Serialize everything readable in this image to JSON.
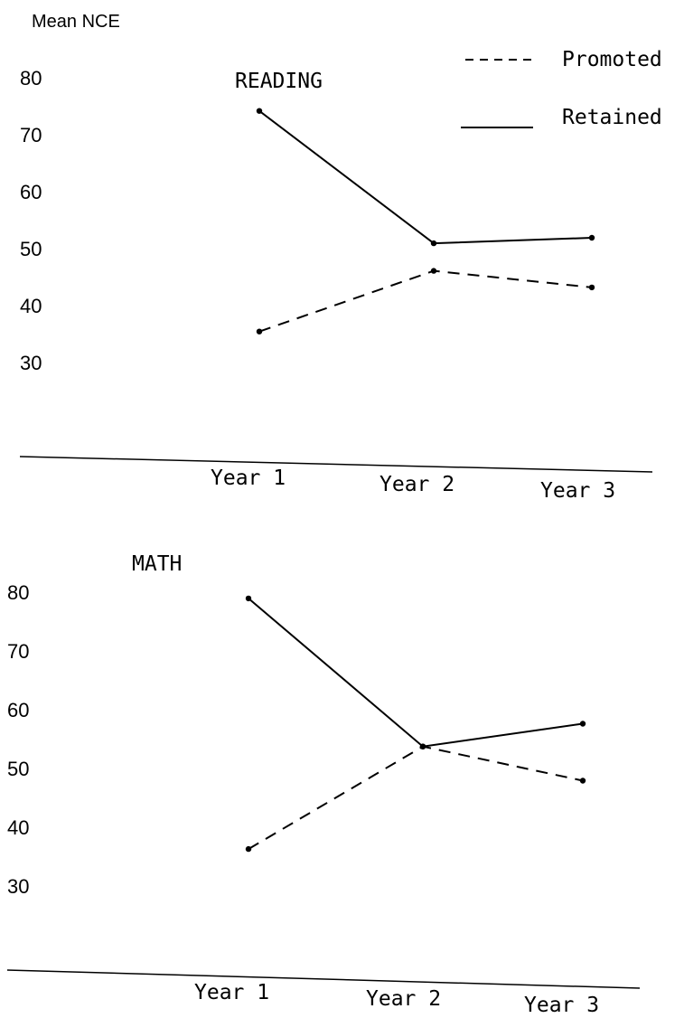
{
  "y_axis_label": "Mean NCE",
  "legend": [
    {
      "name": "Promoted",
      "style": "dashed"
    },
    {
      "name": "Retained",
      "style": "solid"
    }
  ],
  "colors": {
    "ink": "#000000",
    "background": "#ffffff"
  },
  "chart_data": [
    {
      "type": "line",
      "title": "READING",
      "categories": [
        "Year 1",
        "Year 2",
        "Year 3"
      ],
      "ylim": [
        30,
        80
      ],
      "yticks": [
        "80",
        "70",
        "60",
        "50",
        "40",
        "30"
      ],
      "grid": false,
      "legend_position": "top-right",
      "series": [
        {
          "name": "Promoted",
          "style": "dashed",
          "values": [
            33,
            44,
            41
          ]
        },
        {
          "name": "Retained",
          "style": "solid",
          "values": [
            73,
            49,
            50
          ]
        }
      ]
    },
    {
      "type": "line",
      "title": "MATH",
      "categories": [
        "Year 1",
        "Year 2",
        "Year 3"
      ],
      "ylim": [
        30,
        80
      ],
      "yticks": [
        "80",
        "70",
        "60",
        "50",
        "40",
        "30"
      ],
      "grid": false,
      "series": [
        {
          "name": "Promoted",
          "style": "dashed",
          "values": [
            33,
            51,
            45
          ]
        },
        {
          "name": "Retained",
          "style": "solid",
          "values": [
            77,
            51,
            55
          ]
        }
      ]
    }
  ]
}
